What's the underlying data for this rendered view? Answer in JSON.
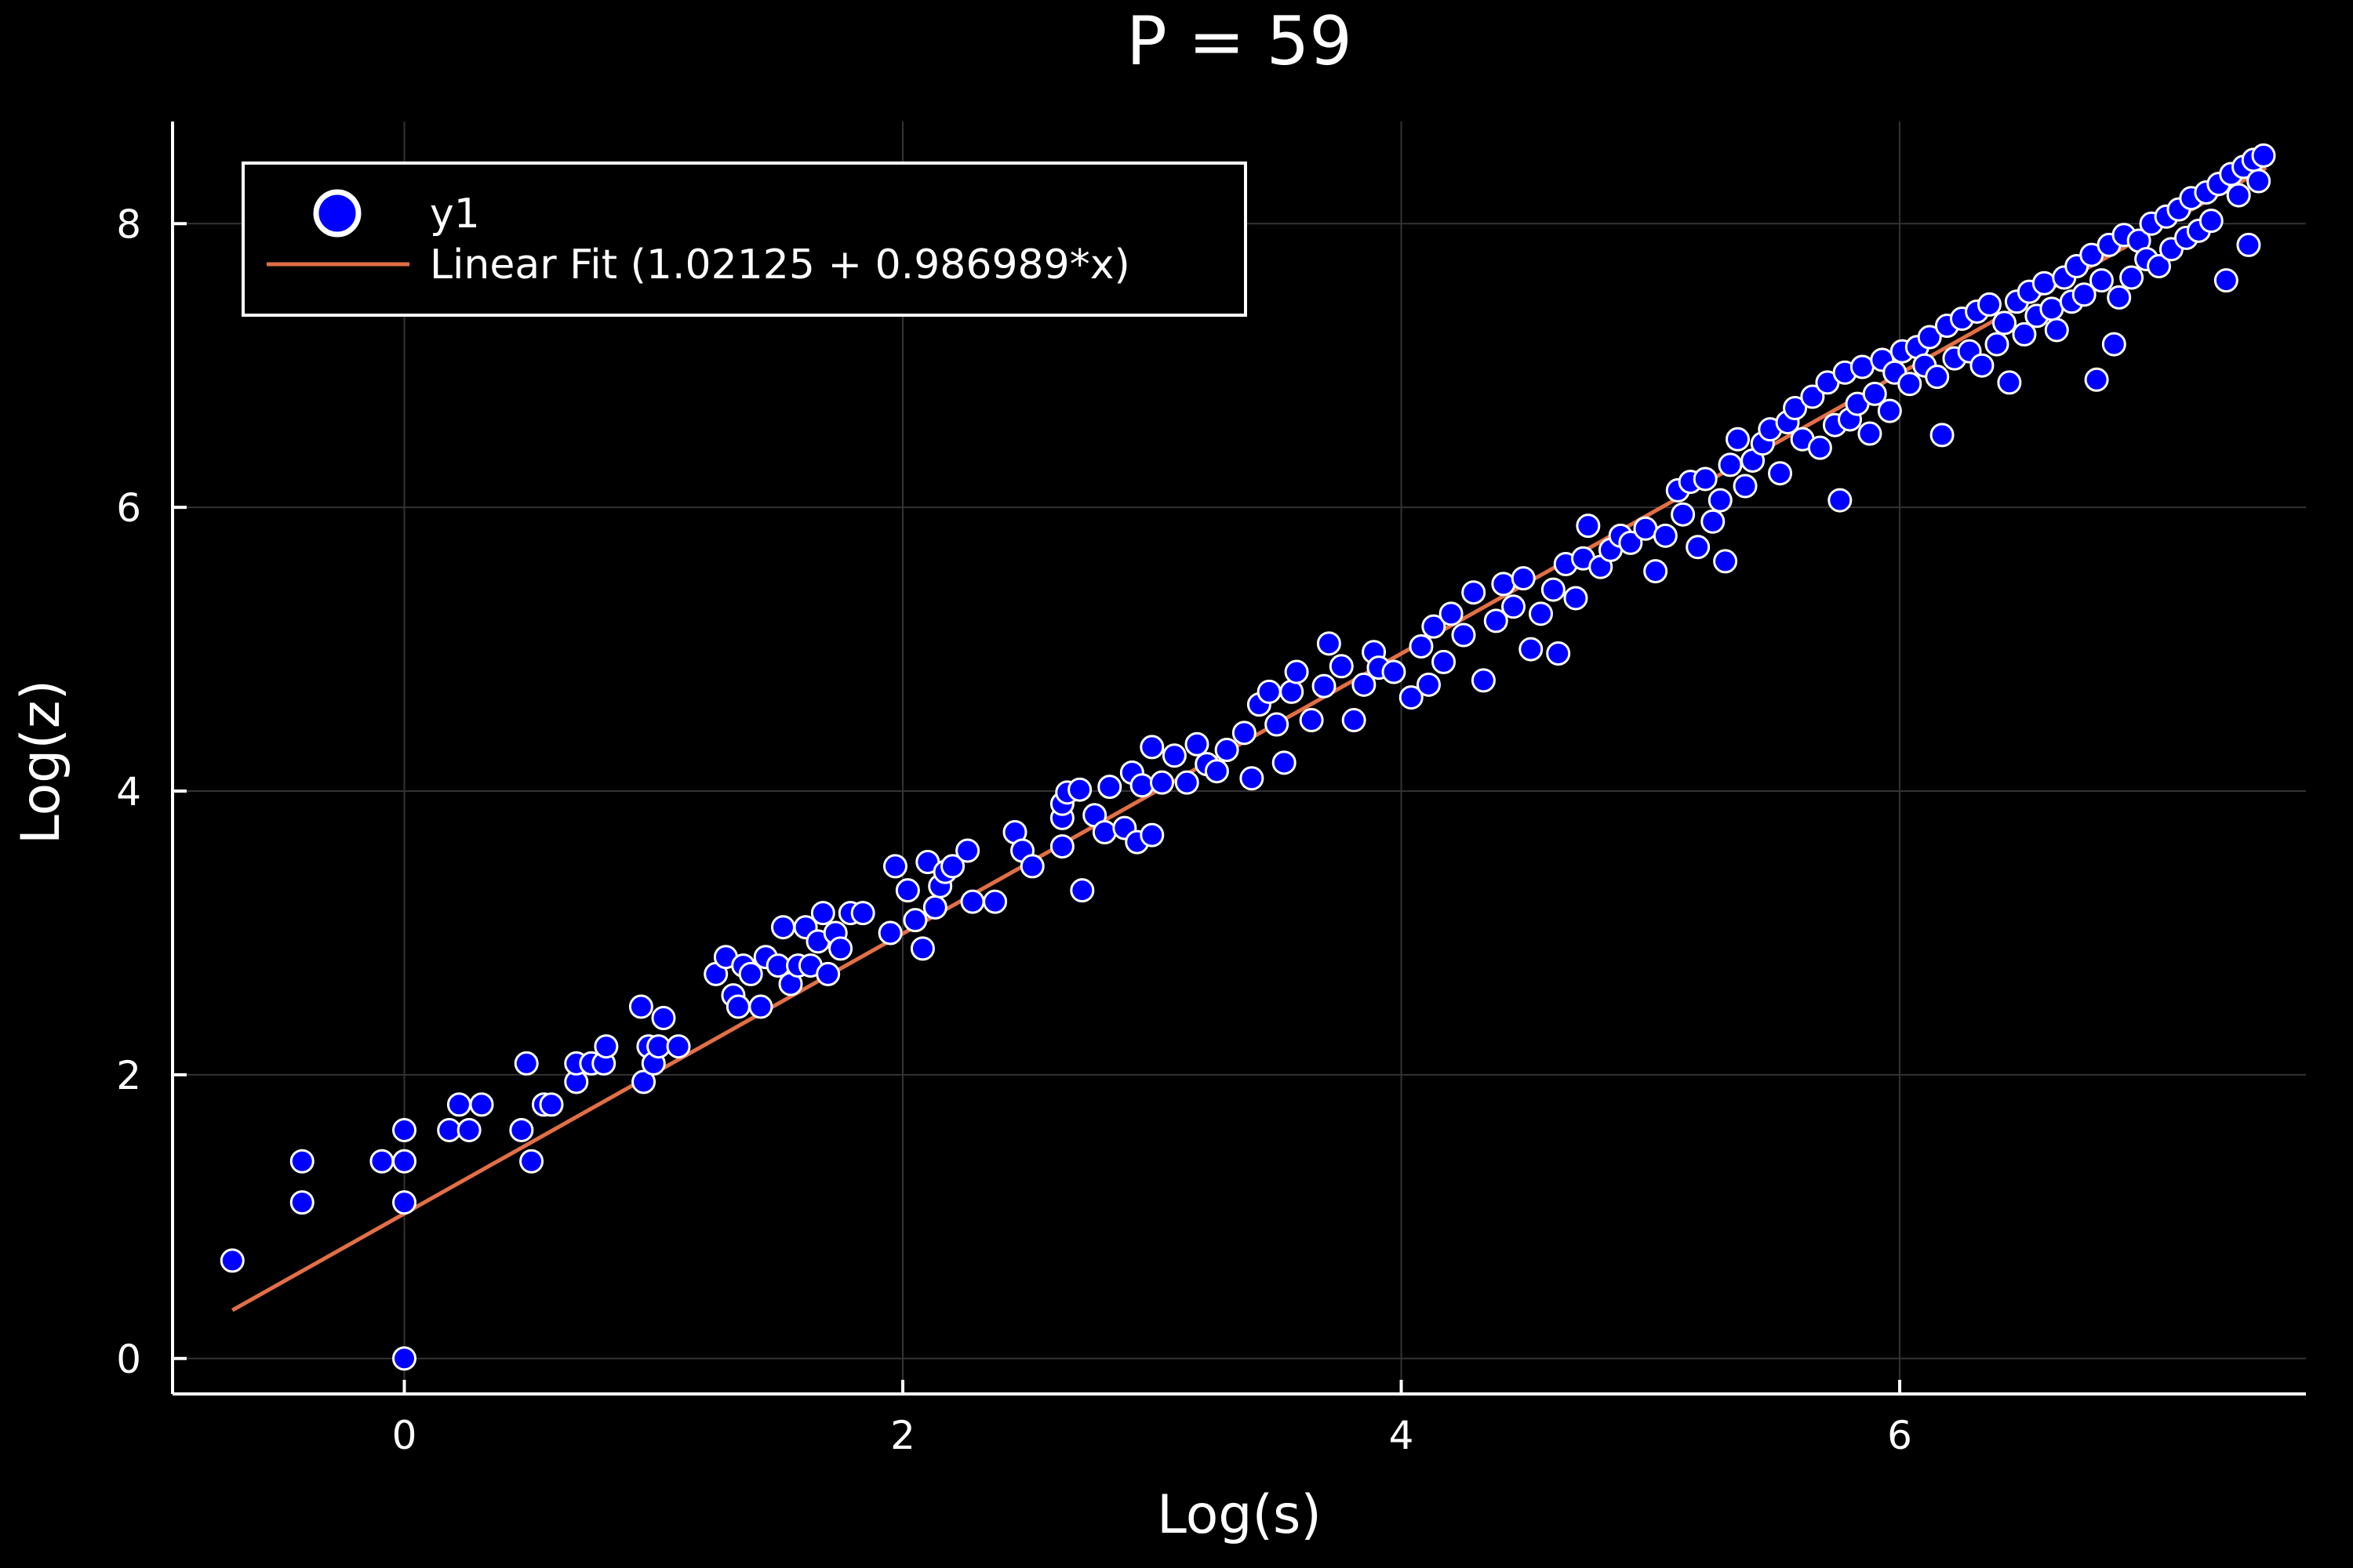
{
  "chart_data": {
    "type": "scatter",
    "title": "P = 59",
    "xlabel": "Log(s)",
    "ylabel": "Log(z)",
    "xlim": [
      -0.93,
      7.63
    ],
    "ylim": [
      -0.25,
      8.72
    ],
    "xticks": [
      0,
      2,
      4,
      6
    ],
    "yticks": [
      0,
      2,
      4,
      6,
      8
    ],
    "grid": true,
    "legend_position": "top-left",
    "colors": {
      "background": "#000000",
      "points": "#0000ff",
      "point_edge": "#ffffff",
      "fit_line": "#e26f46",
      "grid": "#333333",
      "axis": "#ffffff"
    },
    "series": [
      {
        "name": "y1",
        "kind": "scatter",
        "points": [
          [
            -0.69,
            0.69
          ],
          [
            -0.41,
            1.1
          ],
          [
            -0.41,
            1.39
          ],
          [
            -0.09,
            1.39
          ],
          [
            0.0,
            1.1
          ],
          [
            0.0,
            1.39
          ],
          [
            0.0,
            1.61
          ],
          [
            0.0,
            0.0
          ],
          [
            0.18,
            1.61
          ],
          [
            0.22,
            1.79
          ],
          [
            0.26,
            1.61
          ],
          [
            0.31,
            1.79
          ],
          [
            0.47,
            1.61
          ],
          [
            0.49,
            2.08
          ],
          [
            0.51,
            1.39
          ],
          [
            0.56,
            1.79
          ],
          [
            0.59,
            1.79
          ],
          [
            0.69,
            1.95
          ],
          [
            0.69,
            2.08
          ],
          [
            0.75,
            2.08
          ],
          [
            0.8,
            2.08
          ],
          [
            0.81,
            2.2
          ],
          [
            0.95,
            2.48
          ],
          [
            0.96,
            1.95
          ],
          [
            0.98,
            2.2
          ],
          [
            1.0,
            2.08
          ],
          [
            1.02,
            2.2
          ],
          [
            1.04,
            2.4
          ],
          [
            1.1,
            2.2
          ],
          [
            1.25,
            2.71
          ],
          [
            1.29,
            2.83
          ],
          [
            1.32,
            2.56
          ],
          [
            1.34,
            2.48
          ],
          [
            1.36,
            2.77
          ],
          [
            1.39,
            2.71
          ],
          [
            1.43,
            2.48
          ],
          [
            1.45,
            2.83
          ],
          [
            1.5,
            2.77
          ],
          [
            1.52,
            3.04
          ],
          [
            1.55,
            2.64
          ],
          [
            1.58,
            2.77
          ],
          [
            1.61,
            3.04
          ],
          [
            1.63,
            2.77
          ],
          [
            1.66,
            2.94
          ],
          [
            1.68,
            3.14
          ],
          [
            1.7,
            2.71
          ],
          [
            1.73,
            3.0
          ],
          [
            1.75,
            2.89
          ],
          [
            1.79,
            3.14
          ],
          [
            1.84,
            3.14
          ],
          [
            1.95,
            3.0
          ],
          [
            1.97,
            3.47
          ],
          [
            2.02,
            3.3
          ],
          [
            2.05,
            3.09
          ],
          [
            2.08,
            2.89
          ],
          [
            2.1,
            3.5
          ],
          [
            2.13,
            3.18
          ],
          [
            2.15,
            3.33
          ],
          [
            2.17,
            3.43
          ],
          [
            2.2,
            3.47
          ],
          [
            2.26,
            3.58
          ],
          [
            2.28,
            3.22
          ],
          [
            2.37,
            3.22
          ],
          [
            2.45,
            3.71
          ],
          [
            2.48,
            3.58
          ],
          [
            2.52,
            3.47
          ],
          [
            2.64,
            3.61
          ],
          [
            2.64,
            3.81
          ],
          [
            2.64,
            3.91
          ],
          [
            2.66,
            3.99
          ],
          [
            2.71,
            4.01
          ],
          [
            2.72,
            3.3
          ],
          [
            2.77,
            3.83
          ],
          [
            2.81,
            3.71
          ],
          [
            2.83,
            4.03
          ],
          [
            2.89,
            3.74
          ],
          [
            2.92,
            4.13
          ],
          [
            2.94,
            3.64
          ],
          [
            2.96,
            4.04
          ],
          [
            3.0,
            3.69
          ],
          [
            3.0,
            4.31
          ],
          [
            3.04,
            4.06
          ],
          [
            3.09,
            4.25
          ],
          [
            3.14,
            4.06
          ],
          [
            3.18,
            4.33
          ],
          [
            3.22,
            4.19
          ],
          [
            3.26,
            4.14
          ],
          [
            3.3,
            4.29
          ],
          [
            3.37,
            4.41
          ],
          [
            3.4,
            4.09
          ],
          [
            3.43,
            4.61
          ],
          [
            3.47,
            4.7
          ],
          [
            3.5,
            4.47
          ],
          [
            3.53,
            4.2
          ],
          [
            3.56,
            4.7
          ],
          [
            3.58,
            4.84
          ],
          [
            3.64,
            4.5
          ],
          [
            3.69,
            4.74
          ],
          [
            3.71,
            5.04
          ],
          [
            3.76,
            4.88
          ],
          [
            3.81,
            4.5
          ],
          [
            3.85,
            4.75
          ],
          [
            3.89,
            4.98
          ],
          [
            3.91,
            4.87
          ],
          [
            3.97,
            4.84
          ],
          [
            4.04,
            4.66
          ],
          [
            4.08,
            5.02
          ],
          [
            4.11,
            4.75
          ],
          [
            4.13,
            5.16
          ],
          [
            4.17,
            4.91
          ],
          [
            4.2,
            5.25
          ],
          [
            4.25,
            5.1
          ],
          [
            4.29,
            5.4
          ],
          [
            4.33,
            4.78
          ],
          [
            4.38,
            5.2
          ],
          [
            4.41,
            5.46
          ],
          [
            4.45,
            5.3
          ],
          [
            4.49,
            5.5
          ],
          [
            4.52,
            5.0
          ],
          [
            4.56,
            5.25
          ],
          [
            4.61,
            5.42
          ],
          [
            4.63,
            4.97
          ],
          [
            4.66,
            5.6
          ],
          [
            4.7,
            5.36
          ],
          [
            4.73,
            5.64
          ],
          [
            4.75,
            5.87
          ],
          [
            4.8,
            5.58
          ],
          [
            4.84,
            5.7
          ],
          [
            4.88,
            5.8
          ],
          [
            4.92,
            5.75
          ],
          [
            4.98,
            5.85
          ],
          [
            5.02,
            5.55
          ],
          [
            5.06,
            5.8
          ],
          [
            5.11,
            6.12
          ],
          [
            5.13,
            5.95
          ],
          [
            5.16,
            6.18
          ],
          [
            5.19,
            5.72
          ],
          [
            5.22,
            6.2
          ],
          [
            5.25,
            5.9
          ],
          [
            5.28,
            6.05
          ],
          [
            5.3,
            5.62
          ],
          [
            5.32,
            6.3
          ],
          [
            5.35,
            6.48
          ],
          [
            5.38,
            6.15
          ],
          [
            5.41,
            6.33
          ],
          [
            5.45,
            6.45
          ],
          [
            5.48,
            6.55
          ],
          [
            5.52,
            6.24
          ],
          [
            5.55,
            6.6
          ],
          [
            5.58,
            6.7
          ],
          [
            5.61,
            6.48
          ],
          [
            5.65,
            6.78
          ],
          [
            5.68,
            6.42
          ],
          [
            5.71,
            6.88
          ],
          [
            5.74,
            6.58
          ],
          [
            5.76,
            6.05
          ],
          [
            5.78,
            6.95
          ],
          [
            5.8,
            6.62
          ],
          [
            5.83,
            6.73
          ],
          [
            5.85,
            6.99
          ],
          [
            5.88,
            6.52
          ],
          [
            5.9,
            6.8
          ],
          [
            5.93,
            7.04
          ],
          [
            5.96,
            6.68
          ],
          [
            5.98,
            6.95
          ],
          [
            6.01,
            7.1
          ],
          [
            6.04,
            6.87
          ],
          [
            6.07,
            7.13
          ],
          [
            6.1,
            7.0
          ],
          [
            6.12,
            7.2
          ],
          [
            6.15,
            6.92
          ],
          [
            6.17,
            6.51
          ],
          [
            6.19,
            7.28
          ],
          [
            6.22,
            7.05
          ],
          [
            6.25,
            7.33
          ],
          [
            6.28,
            7.1
          ],
          [
            6.31,
            7.38
          ],
          [
            6.33,
            7.0
          ],
          [
            6.36,
            7.43
          ],
          [
            6.39,
            7.15
          ],
          [
            6.42,
            7.3
          ],
          [
            6.44,
            6.88
          ],
          [
            6.47,
            7.45
          ],
          [
            6.5,
            7.22
          ],
          [
            6.52,
            7.52
          ],
          [
            6.55,
            7.35
          ],
          [
            6.58,
            7.58
          ],
          [
            6.61,
            7.4
          ],
          [
            6.63,
            7.25
          ],
          [
            6.66,
            7.62
          ],
          [
            6.69,
            7.45
          ],
          [
            6.71,
            7.7
          ],
          [
            6.74,
            7.5
          ],
          [
            6.77,
            7.78
          ],
          [
            6.79,
            6.9
          ],
          [
            6.81,
            7.6
          ],
          [
            6.84,
            7.85
          ],
          [
            6.86,
            7.15
          ],
          [
            6.88,
            7.48
          ],
          [
            6.9,
            7.92
          ],
          [
            6.93,
            7.62
          ],
          [
            6.96,
            7.88
          ],
          [
            6.99,
            7.75
          ],
          [
            7.01,
            8.0
          ],
          [
            7.04,
            7.7
          ],
          [
            7.07,
            8.05
          ],
          [
            7.09,
            7.82
          ],
          [
            7.12,
            8.1
          ],
          [
            7.15,
            7.9
          ],
          [
            7.17,
            8.18
          ],
          [
            7.2,
            7.95
          ],
          [
            7.23,
            8.22
          ],
          [
            7.25,
            8.02
          ],
          [
            7.28,
            8.28
          ],
          [
            7.31,
            7.6
          ],
          [
            7.33,
            8.35
          ],
          [
            7.36,
            8.2
          ],
          [
            7.38,
            8.4
          ],
          [
            7.4,
            7.85
          ],
          [
            7.42,
            8.45
          ],
          [
            7.44,
            8.3
          ],
          [
            7.46,
            8.48
          ]
        ]
      },
      {
        "name": "Linear Fit (1.02125 + 0.986989*x)",
        "kind": "line",
        "intercept": 1.02125,
        "slope": 0.986989,
        "x_range": [
          -0.69,
          7.47
        ]
      }
    ]
  }
}
